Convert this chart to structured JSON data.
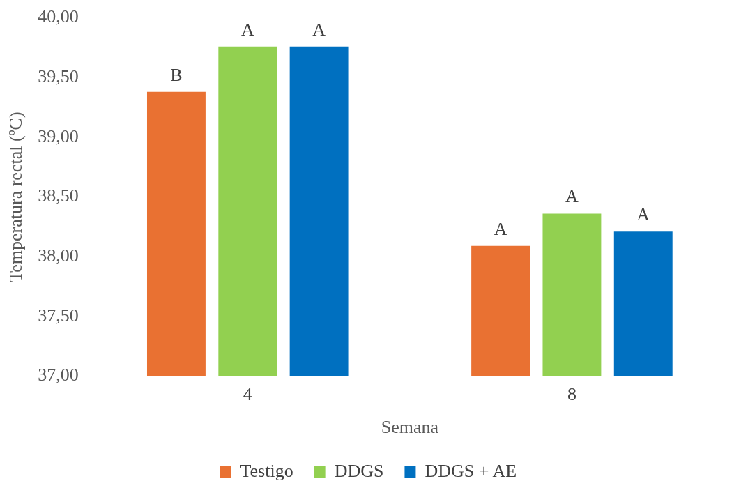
{
  "chart_data": {
    "type": "bar",
    "xlabel": "Semana",
    "ylabel": "Temperatura rectal (ºC)",
    "categories": [
      "4",
      "8"
    ],
    "series": [
      {
        "name": "Testigo",
        "color": "#e97132",
        "values": [
          39.38,
          38.09
        ],
        "value_labels": [
          "B",
          "A"
        ]
      },
      {
        "name": "DDGS",
        "color": "#92d050",
        "values": [
          39.76,
          38.36
        ],
        "value_labels": [
          "A",
          "A"
        ]
      },
      {
        "name": "DDGS + AE",
        "color": "#0070c0",
        "values": [
          39.76,
          38.21
        ],
        "value_labels": [
          "A",
          "A"
        ]
      }
    ],
    "ylim": [
      37,
      40
    ],
    "yticks": [
      {
        "value": 37,
        "label": "37,00"
      },
      {
        "value": 37.5,
        "label": "37,50"
      },
      {
        "value": 38,
        "label": "38,00"
      },
      {
        "value": 38.5,
        "label": "38,50"
      },
      {
        "value": 39,
        "label": "39,00"
      },
      {
        "value": 39.5,
        "label": "39,50"
      },
      {
        "value": 40,
        "label": "40,00"
      }
    ],
    "grid": false,
    "legend": "bottom"
  }
}
